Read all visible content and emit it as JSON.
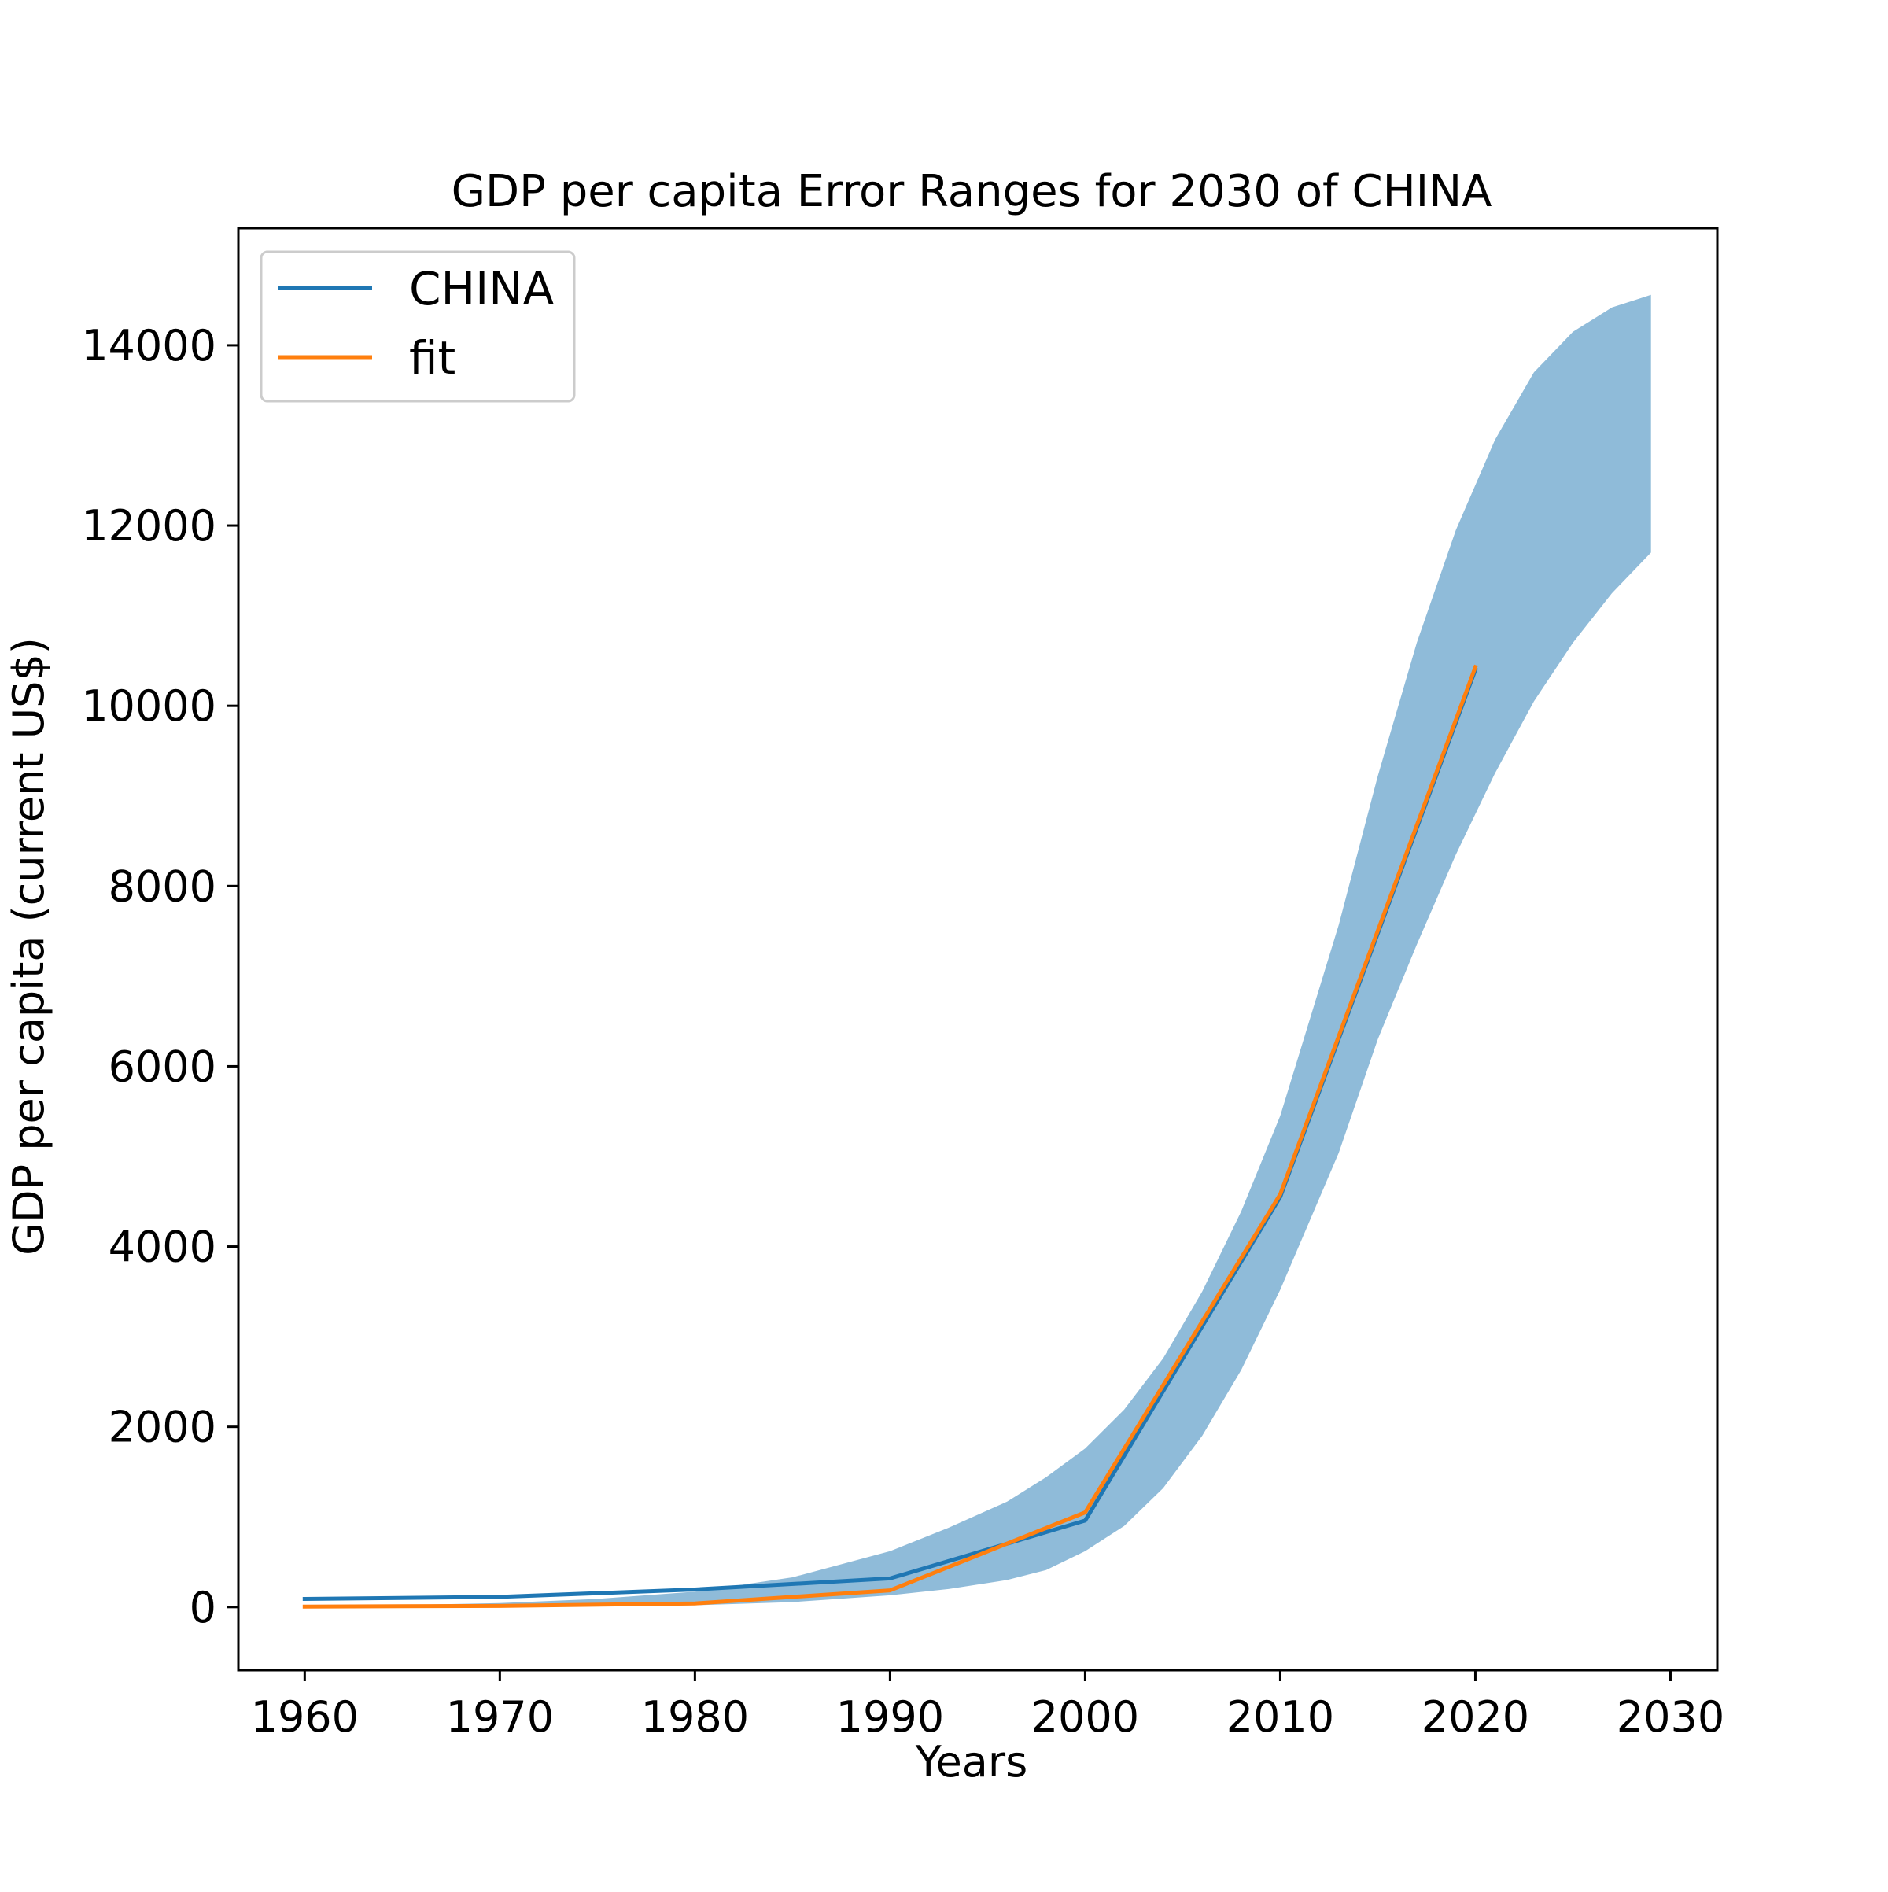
{
  "chart_data": {
    "type": "line",
    "title": "GDP per capita Error Ranges for 2030 of CHINA",
    "xlabel": "Years",
    "ylabel": "GDP per capita (current US$)",
    "xlim": [
      1956.6,
      2032.4
    ],
    "ylim": [
      -700,
      15300
    ],
    "xticks": [
      1960,
      1970,
      1980,
      1990,
      2000,
      2010,
      2020,
      2030
    ],
    "yticks": [
      0,
      2000,
      4000,
      6000,
      8000,
      10000,
      12000,
      14000
    ],
    "grid": false,
    "legend": {
      "position": "top-left",
      "entries": [
        "CHINA",
        "fit"
      ]
    },
    "colors": {
      "CHINA": "#1f77b4",
      "fit": "#ff7f0e",
      "band": "#1f77b4",
      "band_alpha": 0.5
    },
    "series": [
      {
        "name": "CHINA",
        "x": [
          1960,
          1970,
          1980,
          1990,
          2000,
          2010,
          2020
        ],
        "values": [
          90,
          113,
          195,
          318,
          959,
          4550,
          10400
        ]
      },
      {
        "name": "fit",
        "x": [
          1960,
          1970,
          1980,
          1990,
          2000,
          2010,
          2020
        ],
        "values": [
          5,
          12,
          40,
          185,
          1050,
          4580,
          10430
        ]
      }
    ],
    "error_band": {
      "x": [
        1960,
        1965,
        1970,
        1975,
        1980,
        1985,
        1990,
        1993,
        1996,
        1998,
        2000,
        2002,
        2004,
        2006,
        2008,
        2010,
        2013,
        2015,
        2017,
        2019,
        2021,
        2023,
        2025,
        2027,
        2029
      ],
      "lower": [
        0,
        1,
        3,
        8,
        20,
        55,
        130,
        200,
        300,
        410,
        620,
        900,
        1320,
        1900,
        2630,
        3520,
        5040,
        6300,
        7350,
        8350,
        9250,
        10050,
        10700,
        11250,
        11700
      ],
      "upper": [
        10,
        22,
        45,
        90,
        170,
        330,
        620,
        880,
        1170,
        1440,
        1760,
        2190,
        2760,
        3500,
        4390,
        5450,
        7570,
        9220,
        10700,
        11950,
        12950,
        13700,
        14150,
        14420,
        14560
      ]
    }
  }
}
